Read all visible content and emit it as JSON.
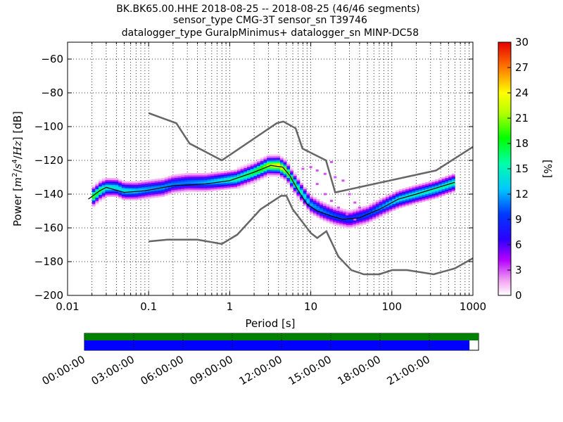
{
  "chart_data": {
    "type": "heatmap",
    "title_lines": [
      "BK.BK65.00.HHE   2018-08-25 -- 2018-08-25  (46/46 segments)",
      "sensor_type CMG-3T sensor_sn T39746",
      "datalogger_type GuralpMinimus+ datalogger_sn MINP-DC58"
    ],
    "xlabel": "Period [s]",
    "ylabel_parts": [
      "Power [",
      "m",
      "2",
      "/",
      "s",
      "4",
      "/",
      "Hz",
      "] [dB]"
    ],
    "x_scale": "log",
    "xlim": [
      0.01,
      1000
    ],
    "ylim": [
      -200,
      -50
    ],
    "x_ticks": [
      {
        "value": 0.01,
        "label": "0.01"
      },
      {
        "value": 0.1,
        "label": "0.1"
      },
      {
        "value": 1,
        "label": "1"
      },
      {
        "value": 10,
        "label": "10"
      },
      {
        "value": 100,
        "label": "100"
      },
      {
        "value": 1000,
        "label": "1000"
      }
    ],
    "y_ticks": [
      {
        "value": -60,
        "label": "−60"
      },
      {
        "value": -80,
        "label": "−80"
      },
      {
        "value": -100,
        "label": "−100"
      },
      {
        "value": -120,
        "label": "−120"
      },
      {
        "value": -140,
        "label": "−140"
      },
      {
        "value": -160,
        "label": "−160"
      },
      {
        "value": -180,
        "label": "−180"
      },
      {
        "value": -200,
        "label": "−200"
      }
    ],
    "grid": "dotted",
    "colorbar": {
      "label": "[%]",
      "range": [
        0,
        30
      ],
      "ticks": [
        {
          "value": 0,
          "label": "0"
        },
        {
          "value": 3,
          "label": "3"
        },
        {
          "value": 6,
          "label": "6"
        },
        {
          "value": 9,
          "label": "9"
        },
        {
          "value": 12,
          "label": "12"
        },
        {
          "value": 15,
          "label": "15"
        },
        {
          "value": 18,
          "label": "18"
        },
        {
          "value": 21,
          "label": "21"
        },
        {
          "value": 24,
          "label": "24"
        },
        {
          "value": 27,
          "label": "27"
        },
        {
          "value": 30,
          "label": "30"
        }
      ]
    },
    "nhnm": [
      [
        0.1,
        -92
      ],
      [
        0.22,
        -98
      ],
      [
        0.32,
        -110
      ],
      [
        0.8,
        -120
      ],
      [
        3.8,
        -98
      ],
      [
        4.6,
        -97
      ],
      [
        6.5,
        -101
      ],
      [
        7.9,
        -113
      ],
      [
        15.4,
        -120
      ],
      [
        20,
        -139
      ],
      [
        350,
        -126
      ],
      [
        1000,
        -112
      ]
    ],
    "nlnm": [
      [
        0.1,
        -168
      ],
      [
        0.17,
        -167
      ],
      [
        0.4,
        -167
      ],
      [
        0.8,
        -169.5
      ],
      [
        1.24,
        -164
      ],
      [
        2.4,
        -149
      ],
      [
        4.3,
        -141
      ],
      [
        5,
        -141
      ],
      [
        6,
        -149
      ],
      [
        10,
        -163
      ],
      [
        12,
        -166
      ],
      [
        15.6,
        -162
      ],
      [
        21.9,
        -177
      ],
      [
        31.6,
        -185
      ],
      [
        45,
        -187.5
      ],
      [
        70,
        -187.5
      ],
      [
        101,
        -185
      ],
      [
        154,
        -185
      ],
      [
        328,
        -187.5
      ],
      [
        600,
        -184
      ],
      [
        1000,
        -178
      ]
    ],
    "mode_curve": [
      [
        0.018,
        -143
      ],
      [
        0.025,
        -138
      ],
      [
        0.03,
        -136
      ],
      [
        0.05,
        -139
      ],
      [
        0.09,
        -138
      ],
      [
        0.2,
        -135
      ],
      [
        0.5,
        -134
      ],
      [
        1,
        -132
      ],
      [
        2,
        -127
      ],
      [
        3.2,
        -123
      ],
      [
        4.5,
        -124
      ],
      [
        5.5,
        -129
      ],
      [
        7,
        -138
      ],
      [
        9,
        -146
      ],
      [
        12,
        -150
      ],
      [
        18,
        -153
      ],
      [
        25,
        -155
      ],
      [
        40,
        -154
      ],
      [
        70,
        -149
      ],
      [
        120,
        -143
      ],
      [
        200,
        -140
      ],
      [
        320,
        -137
      ],
      [
        600,
        -133
      ]
    ],
    "psd_band_pct": [
      [
        0.02,
        -142,
        20
      ],
      [
        0.025,
        -138,
        18
      ],
      [
        0.03,
        -136,
        15
      ],
      [
        0.04,
        -136,
        14
      ],
      [
        0.05,
        -138,
        14
      ],
      [
        0.07,
        -138,
        13
      ],
      [
        0.1,
        -137,
        12
      ],
      [
        0.15,
        -136,
        12
      ],
      [
        0.2,
        -134,
        11
      ],
      [
        0.3,
        -133,
        11
      ],
      [
        0.5,
        -133,
        12
      ],
      [
        0.8,
        -132,
        14
      ],
      [
        1.2,
        -131,
        16
      ],
      [
        2,
        -127,
        18
      ],
      [
        3,
        -123,
        22
      ],
      [
        4,
        -123,
        24
      ],
      [
        5,
        -126,
        22
      ],
      [
        6,
        -132,
        18
      ],
      [
        8,
        -140,
        15
      ],
      [
        10,
        -146,
        12
      ],
      [
        14,
        -150,
        11
      ],
      [
        20,
        -153,
        10
      ],
      [
        30,
        -155,
        9
      ],
      [
        50,
        -152,
        10
      ],
      [
        80,
        -147,
        12
      ],
      [
        120,
        -143,
        14
      ],
      [
        200,
        -140,
        15
      ],
      [
        350,
        -137,
        15
      ],
      [
        600,
        -133,
        16
      ]
    ],
    "outlier_points_pct_approx": [
      [
        8,
        -125,
        1
      ],
      [
        10,
        -124,
        1
      ],
      [
        12,
        -126,
        1
      ],
      [
        15,
        -128,
        1
      ],
      [
        18,
        -121,
        1
      ],
      [
        20,
        -130,
        1
      ],
      [
        25,
        -132,
        1
      ],
      [
        30,
        -140,
        1
      ],
      [
        35,
        -145,
        1
      ],
      [
        40,
        -148,
        1
      ],
      [
        12,
        -134,
        1
      ],
      [
        15,
        -140,
        1
      ],
      [
        18,
        -144,
        1
      ],
      [
        22,
        -148,
        1
      ],
      [
        28,
        -152,
        1
      ],
      [
        35,
        -155,
        1
      ]
    ],
    "timeline": {
      "labels": [
        "00:00:00",
        "03:00:00",
        "06:00:00",
        "09:00:00",
        "12:00:00",
        "15:00:00",
        "18:00:00",
        "21:00:00"
      ],
      "green_coverage_fraction": 1.0,
      "blue_coverage_fraction": 0.977
    }
  }
}
